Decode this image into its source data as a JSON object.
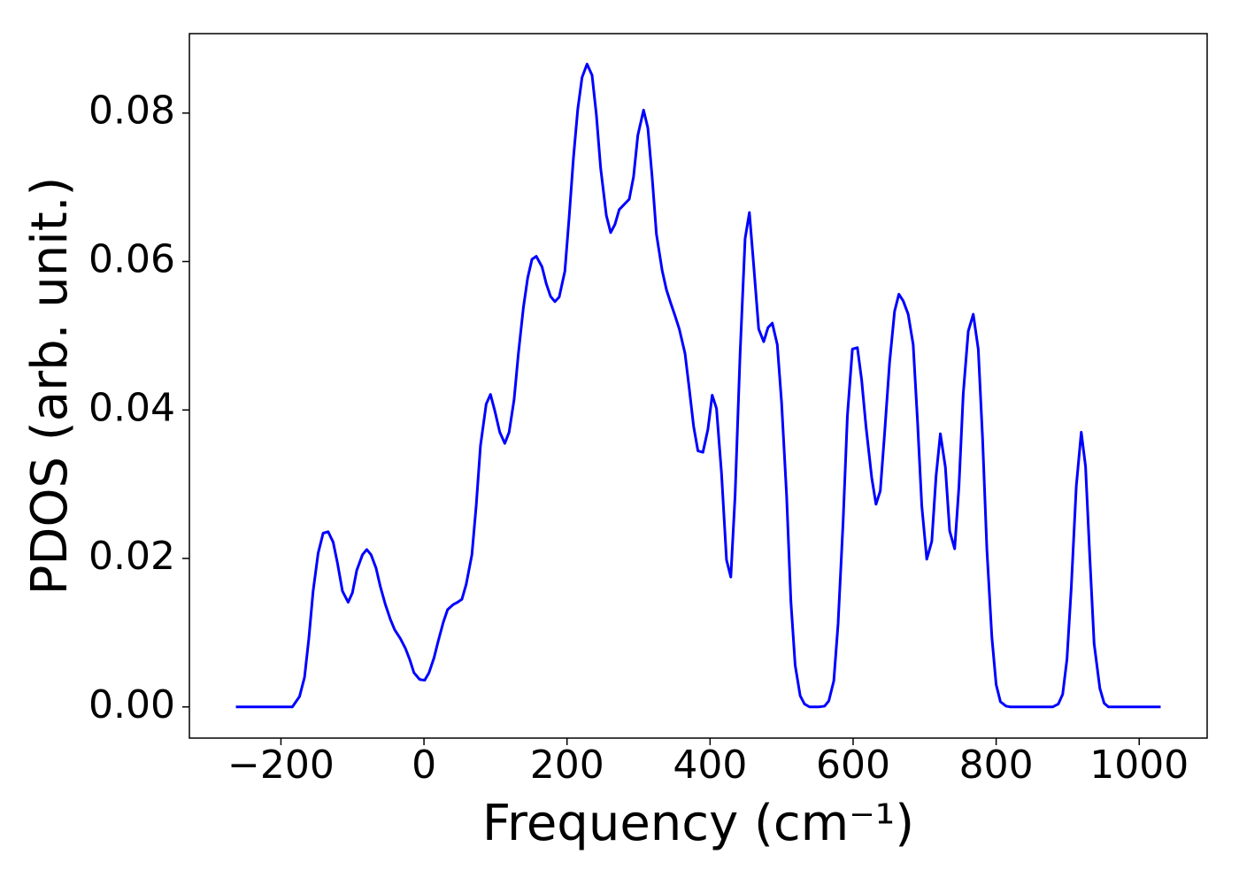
{
  "chart_data": {
    "type": "line",
    "x_label": "Frequency (cm⁻¹)",
    "y_label": "PDOS (arb. unit.)",
    "xlim": [
      -328,
      1095
    ],
    "ylim": [
      -0.0042,
      0.0907
    ],
    "xticks": [
      {
        "value": -200,
        "label": "−200"
      },
      0,
      200,
      400,
      600,
      800,
      1000
    ],
    "yticks": [
      {
        "value": 0,
        "label": "0.00"
      },
      {
        "value": 0.02,
        "label": "0.02"
      },
      {
        "value": 0.04,
        "label": "0.04"
      },
      {
        "value": 0.06,
        "label": "0.06"
      },
      {
        "value": 0.08,
        "label": "0.08"
      }
    ],
    "grid": false,
    "series": [
      {
        "color": "#0000ff",
        "x": [
          -263,
          -184,
          -174,
          -167,
          -161,
          -155,
          -148,
          -141,
          -134,
          -127,
          -121,
          -114,
          -106,
          -100,
          -94,
          -86,
          -80,
          -74,
          -67,
          -61,
          -54,
          -47,
          -41,
          -33,
          -26,
          -20,
          -14,
          -6,
          1,
          7,
          14,
          20,
          27,
          33,
          41,
          47,
          53,
          59,
          67,
          73,
          79,
          87,
          93,
          99,
          106,
          113,
          119,
          126,
          132,
          139,
          145,
          151,
          157,
          165,
          171,
          177,
          183,
          189,
          197,
          203,
          209,
          215,
          221,
          228,
          235,
          241,
          247,
          255,
          261,
          267,
          273,
          281,
          287,
          293,
          299,
          307,
          313,
          319,
          325,
          333,
          339,
          345,
          351,
          357,
          365,
          371,
          377,
          383,
          390,
          397,
          403,
          409,
          416,
          423,
          429,
          435,
          442,
          449,
          455,
          461,
          468,
          475,
          481,
          487,
          494,
          500,
          507,
          513,
          519,
          526,
          532,
          539,
          552,
          560,
          566,
          573,
          579,
          586,
          592,
          599,
          606,
          612,
          618,
          626,
          632,
          638,
          644,
          651,
          658,
          664,
          670,
          677,
          684,
          690,
          696,
          703,
          710,
          716,
          722,
          729,
          735,
          742,
          748,
          754,
          761,
          768,
          775,
          781,
          787,
          794,
          800,
          806,
          814,
          820,
          879,
          887,
          893,
          899,
          905,
          912,
          919,
          925,
          931,
          937,
          945,
          951,
          957,
          1030
        ],
        "values": [
          0,
          0,
          0.0014,
          0.004,
          0.0092,
          0.0156,
          0.0207,
          0.0234,
          0.0236,
          0.0222,
          0.0194,
          0.0156,
          0.0141,
          0.0154,
          0.0184,
          0.0205,
          0.0212,
          0.0205,
          0.0187,
          0.0162,
          0.0138,
          0.0118,
          0.0104,
          0.0092,
          0.0079,
          0.0064,
          0.0046,
          0.0037,
          0.0036,
          0.0046,
          0.0066,
          0.0089,
          0.0114,
          0.0131,
          0.0138,
          0.0141,
          0.0145,
          0.0165,
          0.0205,
          0.0271,
          0.0352,
          0.0408,
          0.0421,
          0.0399,
          0.037,
          0.0355,
          0.037,
          0.0414,
          0.0476,
          0.0538,
          0.0578,
          0.0603,
          0.0607,
          0.0593,
          0.057,
          0.0553,
          0.0546,
          0.0552,
          0.0587,
          0.066,
          0.074,
          0.0805,
          0.0848,
          0.0866,
          0.0851,
          0.0798,
          0.0726,
          0.0662,
          0.0639,
          0.065,
          0.067,
          0.0678,
          0.0684,
          0.0714,
          0.077,
          0.0804,
          0.078,
          0.0714,
          0.0637,
          0.0588,
          0.0562,
          0.0544,
          0.0527,
          0.0509,
          0.0476,
          0.0428,
          0.0378,
          0.0345,
          0.0343,
          0.0374,
          0.042,
          0.0402,
          0.0315,
          0.0198,
          0.0175,
          0.0285,
          0.0476,
          0.0631,
          0.0666,
          0.0595,
          0.0509,
          0.0492,
          0.0511,
          0.0517,
          0.0488,
          0.041,
          0.0285,
          0.0142,
          0.0056,
          0.0015,
          0.0004,
          0,
          0,
          0.0001,
          0.0008,
          0.0035,
          0.0112,
          0.0249,
          0.0392,
          0.0482,
          0.0484,
          0.044,
          0.0378,
          0.0309,
          0.0273,
          0.0291,
          0.0368,
          0.0464,
          0.0533,
          0.0556,
          0.0547,
          0.0529,
          0.0488,
          0.0386,
          0.0271,
          0.0199,
          0.0223,
          0.0311,
          0.0368,
          0.0323,
          0.0237,
          0.0213,
          0.0297,
          0.0422,
          0.0506,
          0.0529,
          0.0482,
          0.0362,
          0.0213,
          0.0094,
          0.003,
          0.0007,
          0.0001,
          0,
          0,
          0.0004,
          0.0017,
          0.0064,
          0.016,
          0.0297,
          0.037,
          0.0324,
          0.0201,
          0.0085,
          0.0025,
          0.0005,
          0,
          0
        ]
      }
    ]
  }
}
